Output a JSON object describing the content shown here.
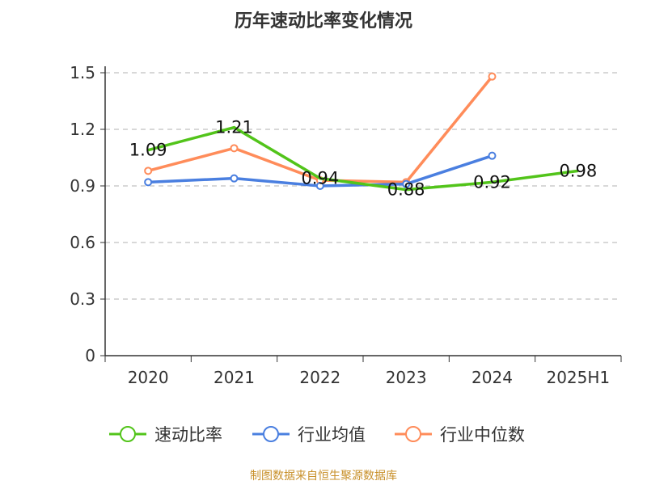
{
  "chart_data": {
    "type": "line",
    "title": "历年速动比率变化情况",
    "categories": [
      "2020",
      "2021",
      "2022",
      "2023",
      "2024",
      "2025H1"
    ],
    "ylim": [
      0,
      1.5
    ],
    "yticks": [
      "0",
      "0.3",
      "0.6",
      "0.9",
      "1.2",
      "1.5"
    ],
    "grid": true,
    "legend_position": "bottom",
    "series": [
      {
        "name": "速动比率",
        "color": "#52c41a",
        "values": [
          1.09,
          1.21,
          0.94,
          0.88,
          0.92,
          0.98
        ],
        "labels": [
          "1.09",
          "1.21",
          "0.94",
          "0.88",
          "0.92",
          "0.98"
        ]
      },
      {
        "name": "行业均值",
        "color": "#4a7fe0",
        "values": [
          0.92,
          0.94,
          0.9,
          0.91,
          1.06,
          null
        ]
      },
      {
        "name": "行业中位数",
        "color": "#ff8c5a",
        "values": [
          0.98,
          1.1,
          0.93,
          0.92,
          1.48,
          null
        ]
      }
    ]
  },
  "source": "制图数据来自恒生聚源数据库"
}
